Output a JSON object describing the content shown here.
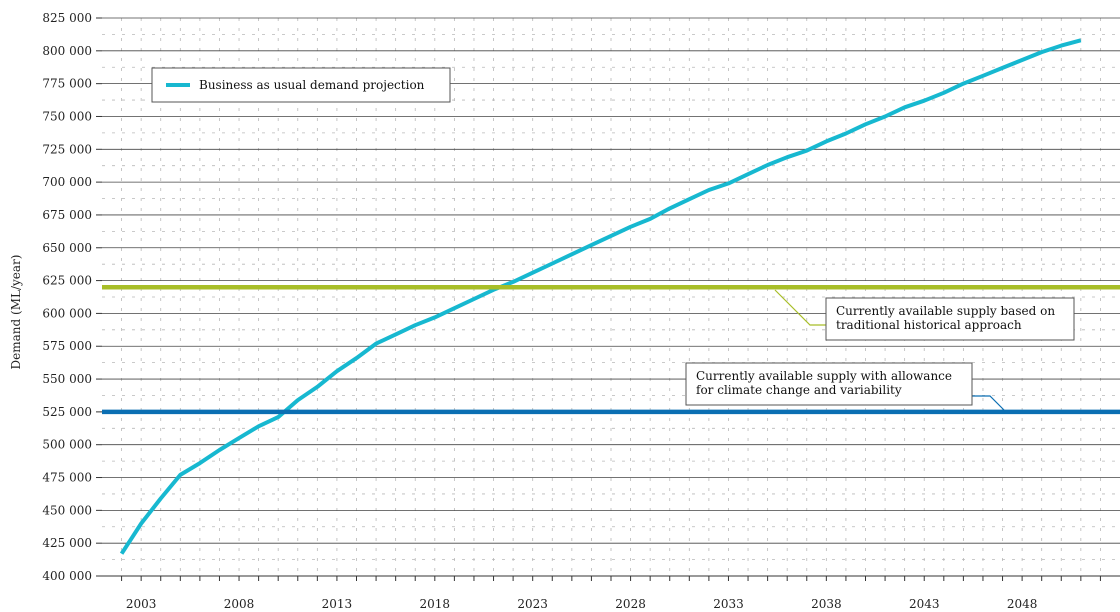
{
  "chart_data": {
    "type": "line",
    "ylabel": "Demand (ML/year)",
    "xlabel": "",
    "ylim": [
      400000,
      825000
    ],
    "xlim": [
      2001,
      2053
    ],
    "y_ticks": [
      400000,
      425000,
      450000,
      475000,
      500000,
      525000,
      550000,
      575000,
      600000,
      625000,
      650000,
      675000,
      700000,
      725000,
      750000,
      775000,
      800000,
      825000
    ],
    "y_tick_labels": [
      "400 000",
      "425 000",
      "450 000",
      "475 000",
      "500 000",
      "525 000",
      "550 000",
      "575 000",
      "600 000",
      "625 000",
      "650 000",
      "675 000",
      "700 000",
      "725 000",
      "750 000",
      "775 000",
      "800 000",
      "825 000"
    ],
    "x_tick_labels": [
      "2003",
      "2008",
      "2013",
      "2018",
      "2023",
      "2028",
      "2033",
      "2038",
      "2043",
      "2048"
    ],
    "grid": true,
    "legend_position": "top-left",
    "series": [
      {
        "name": "Business as usual demand projection",
        "color": "#17b8d0",
        "x": [
          2002,
          2003,
          2004,
          2005,
          2006,
          2007,
          2008,
          2009,
          2010,
          2011,
          2012,
          2013,
          2014,
          2015,
          2016,
          2017,
          2018,
          2019,
          2020,
          2021,
          2022,
          2023,
          2024,
          2025,
          2026,
          2027,
          2028,
          2029,
          2030,
          2031,
          2032,
          2033,
          2034,
          2035,
          2036,
          2037,
          2038,
          2039,
          2040,
          2041,
          2042,
          2043,
          2044,
          2045,
          2046,
          2047,
          2048,
          2049,
          2050,
          2051
        ],
        "y": [
          417000,
          440000,
          459000,
          477000,
          486000,
          496000,
          505000,
          514000,
          521000,
          534000,
          544000,
          556000,
          566000,
          577000,
          584000,
          591000,
          597000,
          604000,
          611000,
          618000,
          624000,
          631000,
          638000,
          645000,
          652000,
          659000,
          666000,
          672000,
          680000,
          687000,
          694000,
          699000,
          706000,
          713000,
          719000,
          724000,
          731000,
          737000,
          744000,
          750000,
          757000,
          762000,
          768000,
          775000,
          781000,
          787000,
          793000,
          799000,
          804000,
          808000
        ]
      },
      {
        "name": "Currently available supply based on traditional historical approach",
        "color": "#a8be28",
        "x": [
          2001,
          2053
        ],
        "y": [
          620000,
          620000
        ]
      },
      {
        "name": "Currently available supply with allowance for climate change and variability",
        "color": "#0b6fb3",
        "x": [
          2001,
          2053
        ],
        "y": [
          525000,
          525000
        ]
      }
    ],
    "legend": {
      "entries": [
        "Business as usual demand projection"
      ]
    },
    "annotations": [
      {
        "lines": [
          "Currently available supply based on",
          "traditional historical approach"
        ],
        "target_series": 1,
        "color": "#a8be28"
      },
      {
        "lines": [
          "Currently available supply with allowance",
          "for climate change and variability"
        ],
        "target_series": 2,
        "color": "#0b6fb3"
      }
    ]
  }
}
